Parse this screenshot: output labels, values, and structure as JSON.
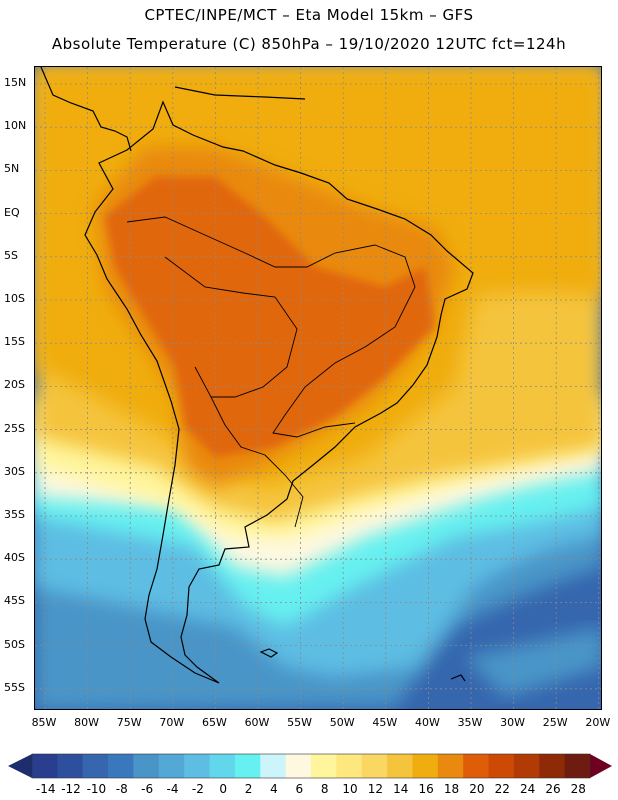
{
  "header": {
    "title_line1": "CPTEC/INPE/MCT –  Eta Model 15km – GFS",
    "title_line2": "Absolute Temperature (C) 850hPa – 19/10/2020 12UTC fct=124h"
  },
  "map": {
    "lat_labels": [
      "15N",
      "10N",
      "5N",
      "EQ",
      "5S",
      "10S",
      "15S",
      "20S",
      "25S",
      "30S",
      "35S",
      "40S",
      "45S",
      "50S",
      "55S"
    ],
    "lon_labels": [
      "85W",
      "80W",
      "75W",
      "70W",
      "65W",
      "60W",
      "55W",
      "50W",
      "45W",
      "40W",
      "35W",
      "30W",
      "25W",
      "20W"
    ]
  },
  "colorbar": {
    "labels": [
      "-14",
      "-12",
      "-10",
      "-8",
      "-6",
      "-4",
      "-2",
      "0",
      "2",
      "4",
      "6",
      "8",
      "10",
      "12",
      "14",
      "16",
      "18",
      "20",
      "22",
      "24",
      "26",
      "28"
    ],
    "colors": [
      "#2a3e8f",
      "#2e4f9e",
      "#3566ae",
      "#3a78bd",
      "#4a95c8",
      "#53a8d6",
      "#5dbde3",
      "#62d6ea",
      "#66f0f0",
      "#ccf4fb",
      "#fef8e0",
      "#fff59c",
      "#fde77e",
      "#fad762",
      "#f5c43d",
      "#f0ad10",
      "#e9890f",
      "#df5c08",
      "#cc4a06",
      "#b23a05",
      "#8e2a06",
      "#6e1c10"
    ],
    "arrow_low_color": "#1e2d6e",
    "arrow_high_color": "#6e0020"
  }
}
